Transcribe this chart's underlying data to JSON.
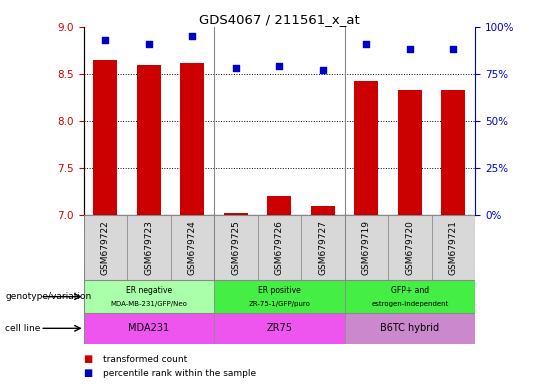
{
  "title": "GDS4067 / 211561_x_at",
  "samples": [
    "GSM679722",
    "GSM679723",
    "GSM679724",
    "GSM679725",
    "GSM679726",
    "GSM679727",
    "GSM679719",
    "GSM679720",
    "GSM679721"
  ],
  "transformed_count": [
    8.65,
    8.6,
    8.62,
    7.02,
    7.2,
    7.1,
    8.43,
    8.33,
    8.33
  ],
  "percentile_rank": [
    93,
    91,
    95,
    78,
    79,
    77,
    91,
    88,
    88
  ],
  "ylim_left": [
    7.0,
    9.0
  ],
  "ylim_right": [
    0,
    100
  ],
  "yticks_left": [
    7.0,
    7.5,
    8.0,
    8.5,
    9.0
  ],
  "yticks_right": [
    0,
    25,
    50,
    75,
    100
  ],
  "bar_color": "#cc0000",
  "dot_color": "#0000cc",
  "bar_width": 0.55,
  "geno_groups": [
    {
      "label1": "ER negative",
      "label2": "MDA-MB-231/GFP/Neo",
      "start": 0,
      "end": 3,
      "color": "#aaffaa"
    },
    {
      "label1": "ER positive",
      "label2": "ZR-75-1/GFP/puro",
      "start": 3,
      "end": 6,
      "color": "#44ee44"
    },
    {
      "label1": "GFP+ and",
      "label2": "estrogen-independent",
      "start": 6,
      "end": 9,
      "color": "#44ee44"
    }
  ],
  "cell_groups": [
    {
      "label": "MDA231",
      "start": 0,
      "end": 3,
      "color": "#ee66ee"
    },
    {
      "label": "ZR75",
      "start": 3,
      "end": 6,
      "color": "#ee66ee"
    },
    {
      "label": "B6TC hybrid",
      "start": 6,
      "end": 9,
      "color": "#ee66ee"
    }
  ],
  "genotype_label": "genotype/variation",
  "cell_line_label": "cell line",
  "legend_bar_label": "transformed count",
  "legend_dot_label": "percentile rank within the sample",
  "ylabel_left_color": "#cc0000",
  "ylabel_right_color": "#0000cc",
  "grid_yticks": [
    7.5,
    8.0,
    8.5
  ],
  "group_sep": [
    2.5,
    5.5
  ]
}
